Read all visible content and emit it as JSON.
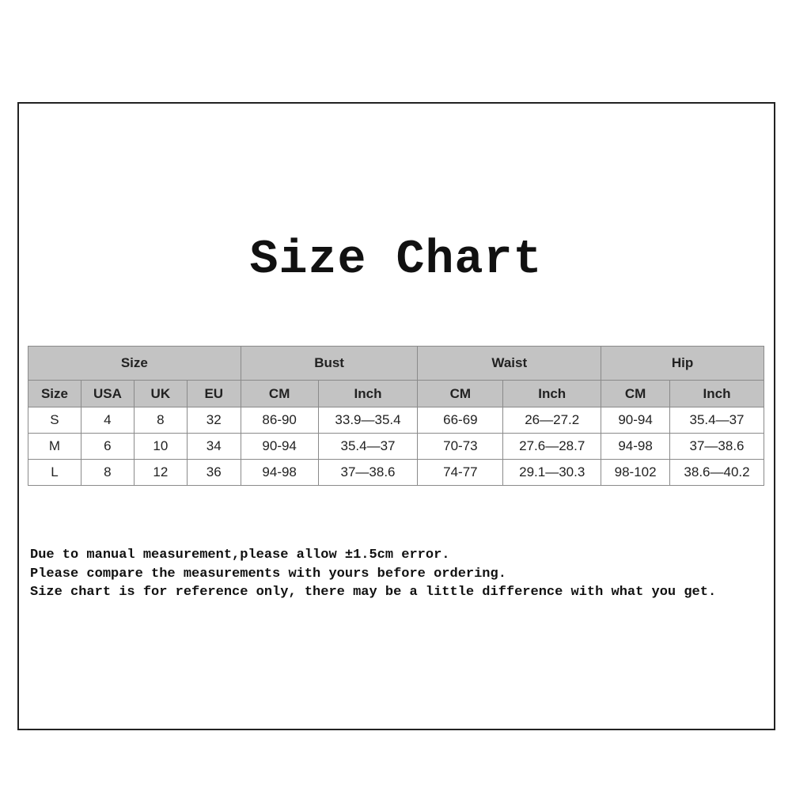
{
  "title": "Size Chart",
  "table": {
    "groups": [
      "Size",
      "Bust",
      "Waist",
      "Hip"
    ],
    "columns": [
      "Size",
      "USA",
      "UK",
      "EU",
      "CM",
      "Inch",
      "CM",
      "Inch",
      "CM",
      "Inch"
    ],
    "rows": [
      [
        "S",
        "4",
        "8",
        "32",
        "86-90",
        "33.9—35.4",
        "66-69",
        "26—27.2",
        "90-94",
        "35.4—37"
      ],
      [
        "M",
        "6",
        "10",
        "34",
        "90-94",
        "35.4—37",
        "70-73",
        "27.6—28.7",
        "94-98",
        "37—38.6"
      ],
      [
        "L",
        "8",
        "12",
        "36",
        "94-98",
        "37—38.6",
        "74-77",
        "29.1—30.3",
        "98-102",
        "38.6—40.2"
      ]
    ],
    "header_color": "#c3c3c3"
  },
  "notes": [
    "Due to manual measurement,please allow ±1.5cm error.",
    "Please compare the measurements with yours before ordering.",
    "Size chart is for reference only, there may be a little difference with what you get."
  ]
}
